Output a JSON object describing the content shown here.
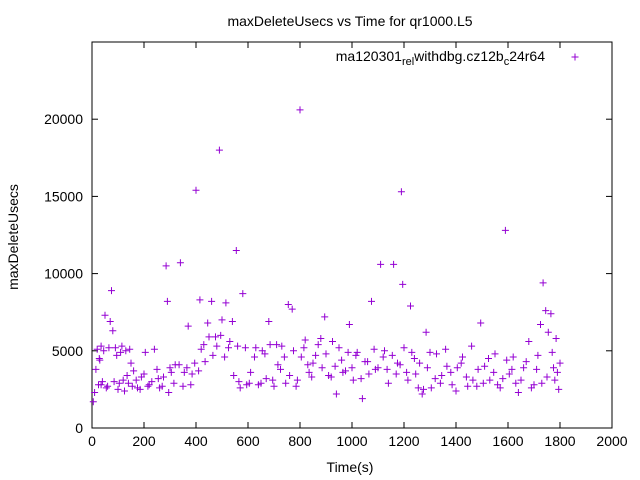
{
  "chart_data": {
    "type": "scatter",
    "title": "maxDeleteUsecs vs Time for qr1000.L5",
    "xlabel": "Time(s)",
    "ylabel": "maxDeleteUsecs",
    "xlim": [
      0,
      2000
    ],
    "ylim": [
      0,
      25000
    ],
    "x_ticks": [
      0,
      200,
      400,
      600,
      800,
      1000,
      1200,
      1400,
      1600,
      1800,
      2000
    ],
    "y_ticks": [
      0,
      5000,
      10000,
      15000,
      20000
    ],
    "x_tick_labels": [
      "0",
      "200",
      "400",
      "600",
      "800",
      "1000",
      "1200",
      "1400",
      "1600",
      "1800",
      "2000"
    ],
    "y_tick_labels": [
      "0",
      "5000",
      "10000",
      "15000",
      "20000"
    ],
    "legend": {
      "placement": "top-right",
      "label": "ma120301_rel_withdbg.cz12b_c24r64",
      "text_before_sub1": "ma120301",
      "sub1": "rel",
      "text_between_subs": "withdbg.cz12b",
      "sub2": "c",
      "text_after_sub2": "24r64"
    },
    "series": [
      {
        "name": "ma120301_rel_withdbg.cz12b_c24r64",
        "color": "#9400d3",
        "marker": "+",
        "points": [
          [
            5,
            1700
          ],
          [
            10,
            2300
          ],
          [
            15,
            3800
          ],
          [
            20,
            5100
          ],
          [
            25,
            2800
          ],
          [
            30,
            4400
          ],
          [
            35,
            5300
          ],
          [
            40,
            3000
          ],
          [
            50,
            7300
          ],
          [
            60,
            2700
          ],
          [
            70,
            6900
          ],
          [
            75,
            8900
          ],
          [
            80,
            6300
          ],
          [
            90,
            5200
          ],
          [
            100,
            2500
          ],
          [
            110,
            4900
          ],
          [
            120,
            3100
          ],
          [
            130,
            5000
          ],
          [
            140,
            2900
          ],
          [
            150,
            4200
          ],
          [
            160,
            3700
          ],
          [
            175,
            2600
          ],
          [
            190,
            3300
          ],
          [
            205,
            4900
          ],
          [
            220,
            2800
          ],
          [
            240,
            5100
          ],
          [
            255,
            3200
          ],
          [
            270,
            2700
          ],
          [
            285,
            10500
          ],
          [
            290,
            8200
          ],
          [
            300,
            3900
          ],
          [
            320,
            4100
          ],
          [
            340,
            10700
          ],
          [
            355,
            3600
          ],
          [
            370,
            6600
          ],
          [
            385,
            3500
          ],
          [
            395,
            4200
          ],
          [
            400,
            15400
          ],
          [
            415,
            8300
          ],
          [
            430,
            5400
          ],
          [
            445,
            6800
          ],
          [
            460,
            8200
          ],
          [
            475,
            5900
          ],
          [
            490,
            18000
          ],
          [
            500,
            7000
          ],
          [
            515,
            8100
          ],
          [
            525,
            5200
          ],
          [
            540,
            6900
          ],
          [
            555,
            11500
          ],
          [
            565,
            3000
          ],
          [
            580,
            8700
          ],
          [
            595,
            2800
          ],
          [
            610,
            3600
          ],
          [
            630,
            5200
          ],
          [
            650,
            2900
          ],
          [
            665,
            4800
          ],
          [
            680,
            6900
          ],
          [
            695,
            3100
          ],
          [
            710,
            5400
          ],
          [
            725,
            3800
          ],
          [
            740,
            4600
          ],
          [
            755,
            8000
          ],
          [
            770,
            7700
          ],
          [
            785,
            2700
          ],
          [
            800,
            20600
          ],
          [
            815,
            5200
          ],
          [
            830,
            4100
          ],
          [
            845,
            3300
          ],
          [
            860,
            4700
          ],
          [
            880,
            5800
          ],
          [
            895,
            7200
          ],
          [
            910,
            3400
          ],
          [
            925,
            5600
          ],
          [
            940,
            2200
          ],
          [
            960,
            4400
          ],
          [
            975,
            3700
          ],
          [
            990,
            6700
          ],
          [
            1005,
            3100
          ],
          [
            1020,
            4900
          ],
          [
            1040,
            1900
          ],
          [
            1060,
            4300
          ],
          [
            1075,
            8200
          ],
          [
            1090,
            3800
          ],
          [
            1110,
            10600
          ],
          [
            1125,
            5000
          ],
          [
            1140,
            2900
          ],
          [
            1160,
            10600
          ],
          [
            1175,
            4200
          ],
          [
            1190,
            15300
          ],
          [
            1195,
            9300
          ],
          [
            1210,
            3600
          ],
          [
            1225,
            7900
          ],
          [
            1240,
            4500
          ],
          [
            1255,
            2600
          ],
          [
            1270,
            2200
          ],
          [
            1285,
            6200
          ],
          [
            1300,
            4900
          ],
          [
            1320,
            3200
          ],
          [
            1340,
            2900
          ],
          [
            1360,
            5100
          ],
          [
            1380,
            3600
          ],
          [
            1400,
            2400
          ],
          [
            1420,
            4200
          ],
          [
            1440,
            3300
          ],
          [
            1460,
            5300
          ],
          [
            1480,
            2700
          ],
          [
            1495,
            6800
          ],
          [
            1510,
            4000
          ],
          [
            1530,
            3100
          ],
          [
            1550,
            4800
          ],
          [
            1570,
            2600
          ],
          [
            1590,
            12800
          ],
          [
            1605,
            3500
          ],
          [
            1620,
            4600
          ],
          [
            1640,
            2300
          ],
          [
            1660,
            3900
          ],
          [
            1680,
            5600
          ],
          [
            1700,
            2800
          ],
          [
            1715,
            4700
          ],
          [
            1725,
            6700
          ],
          [
            1735,
            9400
          ],
          [
            1745,
            7600
          ],
          [
            1755,
            6200
          ],
          [
            1765,
            7400
          ],
          [
            1775,
            3900
          ],
          [
            1780,
            3100
          ],
          [
            1785,
            5800
          ],
          [
            1790,
            3600
          ],
          [
            1800,
            4200
          ],
          [
            1795,
            2500
          ],
          [
            1770,
            4900
          ],
          [
            1750,
            3300
          ],
          [
            1730,
            2900
          ],
          [
            1710,
            3800
          ],
          [
            1690,
            2600
          ],
          [
            1670,
            4300
          ],
          [
            1650,
            3100
          ],
          [
            1630,
            2900
          ],
          [
            1615,
            3800
          ],
          [
            1595,
            4400
          ],
          [
            1580,
            3200
          ],
          [
            1560,
            2800
          ],
          [
            1545,
            3600
          ],
          [
            1525,
            4500
          ],
          [
            1505,
            2900
          ],
          [
            1485,
            3800
          ],
          [
            1465,
            3100
          ],
          [
            1445,
            2700
          ],
          [
            1425,
            4600
          ],
          [
            1405,
            3900
          ],
          [
            1385,
            2800
          ],
          [
            1365,
            4000
          ],
          [
            1345,
            3400
          ],
          [
            1325,
            4800
          ],
          [
            1305,
            2600
          ],
          [
            1290,
            3900
          ],
          [
            1275,
            2500
          ],
          [
            1260,
            4200
          ],
          [
            1245,
            3500
          ],
          [
            1230,
            4900
          ],
          [
            1215,
            3100
          ],
          [
            1200,
            5200
          ],
          [
            1185,
            4100
          ],
          [
            1170,
            3500
          ],
          [
            1155,
            4700
          ],
          [
            1135,
            3800
          ],
          [
            1120,
            4600
          ],
          [
            1100,
            3900
          ],
          [
            1085,
            5100
          ],
          [
            1065,
            3500
          ],
          [
            1050,
            4300
          ],
          [
            1035,
            3200
          ],
          [
            1015,
            4700
          ],
          [
            1000,
            3900
          ],
          [
            985,
            4900
          ],
          [
            965,
            3600
          ],
          [
            950,
            5200
          ],
          [
            935,
            4000
          ],
          [
            920,
            3300
          ],
          [
            900,
            4800
          ],
          [
            885,
            3900
          ],
          [
            870,
            5400
          ],
          [
            850,
            4200
          ],
          [
            835,
            3600
          ],
          [
            820,
            5700
          ],
          [
            805,
            4600
          ],
          [
            790,
            3100
          ],
          [
            775,
            5000
          ],
          [
            760,
            3400
          ],
          [
            745,
            2900
          ],
          [
            730,
            5300
          ],
          [
            715,
            4100
          ],
          [
            700,
            2700
          ],
          [
            685,
            5400
          ],
          [
            670,
            3200
          ],
          [
            655,
            5000
          ],
          [
            640,
            2800
          ],
          [
            625,
            4600
          ],
          [
            605,
            2900
          ],
          [
            590,
            5200
          ],
          [
            570,
            2600
          ],
          [
            560,
            5300
          ],
          [
            545,
            3400
          ],
          [
            530,
            5600
          ],
          [
            510,
            4600
          ],
          [
            495,
            6000
          ],
          [
            480,
            5300
          ],
          [
            465,
            4700
          ],
          [
            450,
            5900
          ],
          [
            435,
            4300
          ],
          [
            420,
            5100
          ],
          [
            410,
            3700
          ],
          [
            380,
            2800
          ],
          [
            365,
            3900
          ],
          [
            350,
            2700
          ],
          [
            335,
            4100
          ],
          [
            315,
            2900
          ],
          [
            305,
            3600
          ],
          [
            295,
            2300
          ],
          [
            275,
            3300
          ],
          [
            260,
            2600
          ],
          [
            250,
            3800
          ],
          [
            230,
            3000
          ],
          [
            215,
            2700
          ],
          [
            200,
            3500
          ],
          [
            185,
            2500
          ],
          [
            170,
            3100
          ],
          [
            155,
            2700
          ],
          [
            145,
            5100
          ],
          [
            135,
            3400
          ],
          [
            125,
            2400
          ],
          [
            115,
            5300
          ],
          [
            105,
            2900
          ],
          [
            95,
            4700
          ],
          [
            85,
            3000
          ],
          [
            65,
            5200
          ],
          [
            55,
            2600
          ],
          [
            45,
            5000
          ],
          [
            35,
            2800
          ],
          [
            28,
            4500
          ]
        ]
      }
    ]
  }
}
